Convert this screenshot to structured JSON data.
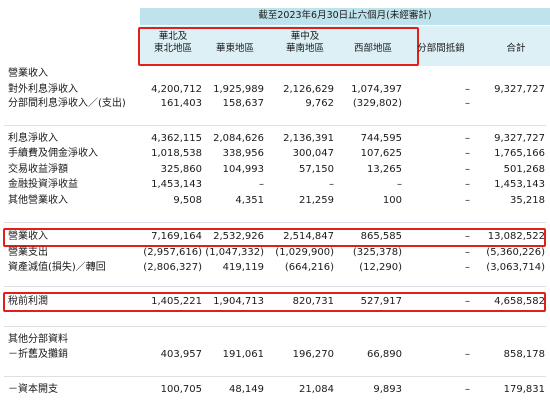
{
  "header": {
    "period": "截至2023年6月30日止六個月(未經審計)",
    "columns": [
      "華北及\n東北地區",
      "華東地區",
      "華中及\n華南地區",
      "西部地區",
      "分部間抵銷",
      "合計"
    ]
  },
  "rows": [
    {
      "label": "營業收入"
    },
    {
      "label": "對外利息淨收入",
      "values": [
        "4,200,712",
        "1,925,989",
        "2,126,629",
        "1,074,397",
        "–",
        "9,327,727"
      ]
    },
    {
      "label": "分部間利息淨收入／(支出)",
      "values": [
        "161,403",
        "158,637",
        "9,762",
        "(329,802)",
        "–",
        null
      ]
    },
    {
      "label": "利息淨收入",
      "values": [
        "4,362,115",
        "2,084,626",
        "2,136,391",
        "744,595",
        "–",
        "9,327,727"
      ]
    },
    {
      "label": "手續費及佣金淨收入",
      "values": [
        "1,018,538",
        "338,956",
        "300,047",
        "107,625",
        "–",
        "1,765,166"
      ]
    },
    {
      "label": "交易收益淨額",
      "values": [
        "325,860",
        "104,993",
        "57,150",
        "13,265",
        "–",
        "501,268"
      ]
    },
    {
      "label": "金融投資淨收益",
      "values": [
        "1,453,143",
        "–",
        "–",
        "–",
        "–",
        "1,453,143"
      ]
    },
    {
      "label": "其他營業收入",
      "values": [
        "9,508",
        "4,351",
        "21,259",
        "100",
        "–",
        "35,218"
      ]
    },
    {
      "label": "營業收入",
      "values": [
        "7,169,164",
        "2,532,926",
        "2,514,847",
        "865,585",
        "–",
        "13,082,522"
      ]
    },
    {
      "label": "營業支出",
      "values": [
        "(2,957,616)",
        "(1,047,332)",
        "(1,029,900)",
        "(325,378)",
        "–",
        "(5,360,226)"
      ]
    },
    {
      "label": "資產減值(損失)／轉回",
      "values": [
        "(2,806,327)",
        "419,119",
        "(664,216)",
        "(12,290)",
        "–",
        "(3,063,714)"
      ]
    },
    {
      "label": "稅前利潤",
      "values": [
        "1,405,221",
        "1,904,713",
        "820,731",
        "527,917",
        "–",
        "4,658,582"
      ]
    },
    {
      "label": "其他分部資料"
    },
    {
      "label": "－折舊及攤銷",
      "values": [
        "403,957",
        "191,061",
        "196,270",
        "66,890",
        "–",
        "858,178"
      ]
    },
    {
      "label": "－資本開支",
      "values": [
        "100,705",
        "48,149",
        "21,084",
        "9,893",
        "–",
        "179,831"
      ]
    }
  ]
}
